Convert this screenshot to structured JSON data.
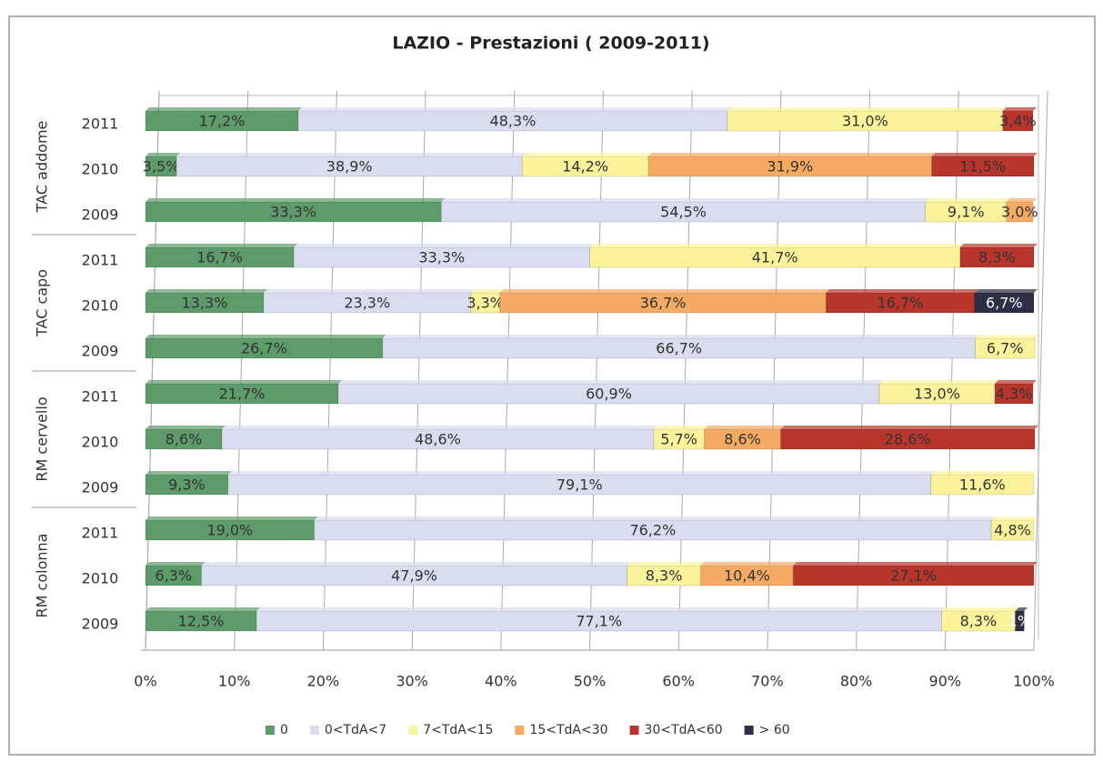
{
  "chart_data": {
    "type": "stacked-bar-horizontal",
    "title": "LAZIO - Prestazioni ( 2009-2011)",
    "groups": [
      "TAC addome",
      "TAC capo",
      "RM cervello",
      "RM colonna"
    ],
    "categories": [
      "2011",
      "2010",
      "2009",
      "2011",
      "2010",
      "2009",
      "2011",
      "2010",
      "2009",
      "2011",
      "2010",
      "2009"
    ],
    "series": [
      {
        "name": "0",
        "color": "#5e9b6a",
        "values": [
          17.2,
          3.5,
          33.3,
          16.7,
          13.3,
          26.7,
          21.7,
          8.6,
          9.3,
          19.0,
          6.3,
          12.5
        ],
        "value_labels": [
          "17,2%",
          "3,5%",
          "33,3%",
          "16,7%",
          "13,3%",
          "26,7%",
          "21,7%",
          "8,6%",
          "9,3%",
          "19,0%",
          "6,3%",
          "12,5%"
        ]
      },
      {
        "name": "0<TdA<7",
        "color": "#dadcf0",
        "values": [
          48.3,
          38.9,
          54.5,
          33.3,
          23.3,
          66.7,
          60.9,
          48.6,
          79.1,
          76.2,
          47.9,
          77.1
        ],
        "value_labels": [
          "48,3%",
          "38,9%",
          "54,5%",
          "33,3%",
          "23,3%",
          "66,7%",
          "60,9%",
          "48,6%",
          "79,1%",
          "76,2%",
          "47,9%",
          "77,1%"
        ]
      },
      {
        "name": "7<TdA<15",
        "color": "#fbf39c",
        "values": [
          31.0,
          14.2,
          9.1,
          41.7,
          3.3,
          6.7,
          13.0,
          5.7,
          11.6,
          4.8,
          8.3,
          8.3
        ],
        "value_labels": [
          "31,0%",
          "14,2%",
          "9,1%",
          "41,7%",
          "3,3%",
          "6,7%",
          "13,0%",
          "5,7%",
          "11,6%",
          "4,8%",
          "8,3%",
          "8,3%"
        ]
      },
      {
        "name": "15<TdA<30",
        "color": "#f4aa63",
        "values": [
          null,
          31.9,
          3.0,
          null,
          36.7,
          null,
          null,
          8.6,
          null,
          null,
          10.4,
          null
        ],
        "value_labels": [
          null,
          "31,9%",
          "3,0%",
          null,
          "36,7%",
          null,
          null,
          "8,6%",
          null,
          null,
          "10,4%",
          null
        ]
      },
      {
        "name": "30<TdA<60",
        "color": "#b8352c",
        "values": [
          3.4,
          11.5,
          null,
          8.3,
          16.7,
          null,
          4.3,
          28.6,
          null,
          null,
          27.1,
          null
        ],
        "value_labels": [
          "3,4%",
          "11,5%",
          null,
          "8,3%",
          "16,7%",
          null,
          "4,3%",
          "28,6%",
          null,
          null,
          "27,1%",
          null
        ]
      },
      {
        "name": "> 60",
        "color": "#2c2f45",
        "values": [
          null,
          null,
          null,
          null,
          6.7,
          null,
          null,
          null,
          null,
          null,
          null,
          1
        ],
        "value_labels": [
          null,
          null,
          null,
          null,
          "6,7%",
          null,
          null,
          null,
          null,
          null,
          null,
          "1%"
        ]
      }
    ],
    "xlim": [
      0,
      100
    ],
    "xticks": [
      {
        "value": 0,
        "label": "0%"
      },
      {
        "value": 10,
        "label": "10%"
      },
      {
        "value": 20,
        "label": "20%"
      },
      {
        "value": 30,
        "label": "30%"
      },
      {
        "value": 40,
        "label": "40%"
      },
      {
        "value": 50,
        "label": "50%"
      },
      {
        "value": 60,
        "label": "60%"
      },
      {
        "value": 70,
        "label": "70%"
      },
      {
        "value": 80,
        "label": "80%"
      },
      {
        "value": 90,
        "label": "90%"
      },
      {
        "value": 100,
        "label": "100%"
      }
    ],
    "grid": true,
    "legend": "bottom"
  }
}
